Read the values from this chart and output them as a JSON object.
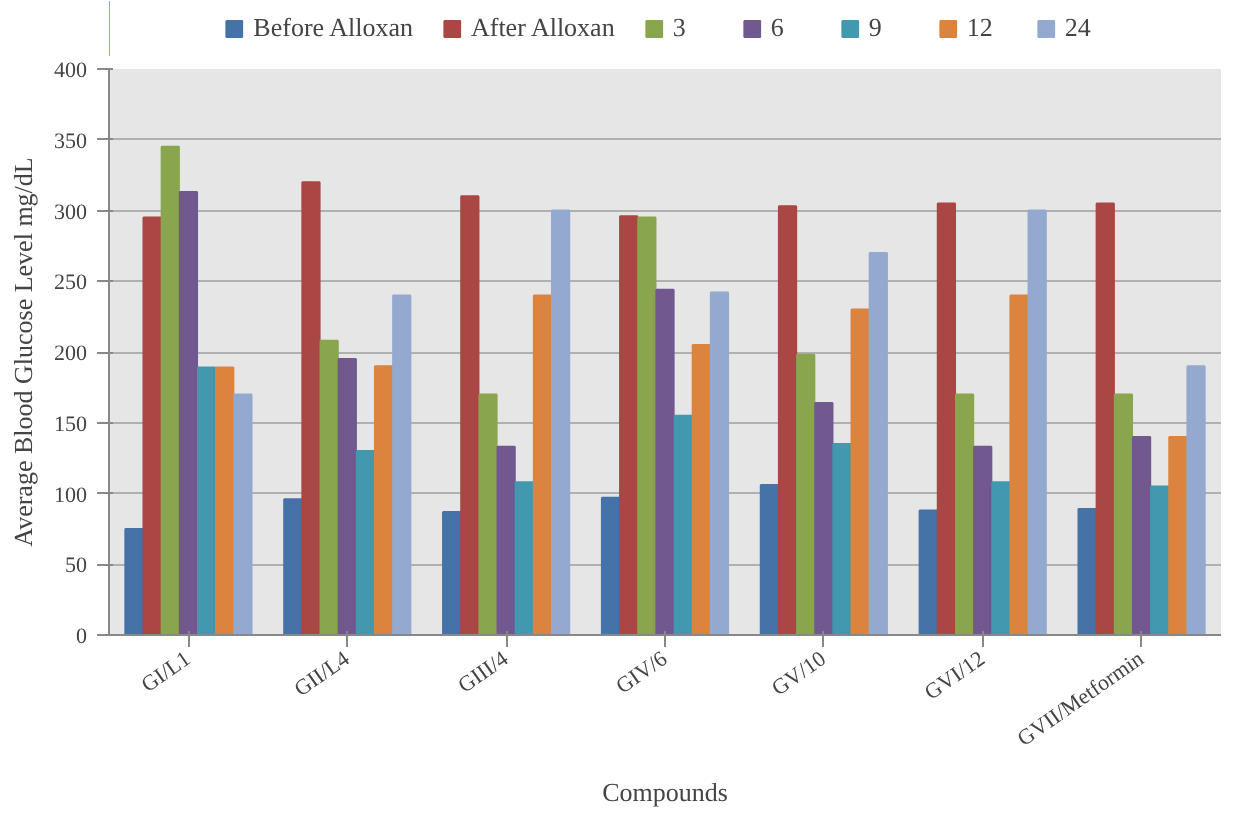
{
  "chart_data": {
    "type": "bar",
    "xlabel": "Compounds",
    "ylabel": "Average Blood Glucose Level mg/dL",
    "categories": [
      "GI/L1",
      "GII/L4",
      "GIII/4",
      "GIV/6",
      "GV/10",
      "GVI/12",
      "GVII/Metformin"
    ],
    "series": [
      {
        "name": "Before Alloxan",
        "color": "#4572a7",
        "values": [
          75,
          96,
          87,
          97,
          106,
          88,
          89
        ]
      },
      {
        "name": "After Alloxan",
        "color": "#aa4643",
        "values": [
          295,
          320,
          310,
          296,
          303,
          305,
          305
        ]
      },
      {
        "name": "3",
        "color": "#89a54e",
        "values": [
          345,
          208,
          170,
          295,
          198,
          170,
          170
        ]
      },
      {
        "name": "6",
        "color": "#71588f",
        "values": [
          313,
          195,
          133,
          244,
          164,
          133,
          140
        ]
      },
      {
        "name": "9",
        "color": "#4198af",
        "values": [
          189,
          130,
          108,
          155,
          135,
          108,
          105
        ]
      },
      {
        "name": "12",
        "color": "#db843d",
        "values": [
          189,
          190,
          240,
          205,
          230,
          240,
          140
        ]
      },
      {
        "name": "24",
        "color": "#93a9cf",
        "values": [
          170,
          240,
          300,
          242,
          270,
          300,
          190
        ]
      }
    ],
    "ylim": [
      0,
      400
    ],
    "yticks": [
      0,
      50,
      100,
      150,
      200,
      250,
      300,
      350,
      400
    ],
    "grid": "y",
    "legend": "top"
  }
}
